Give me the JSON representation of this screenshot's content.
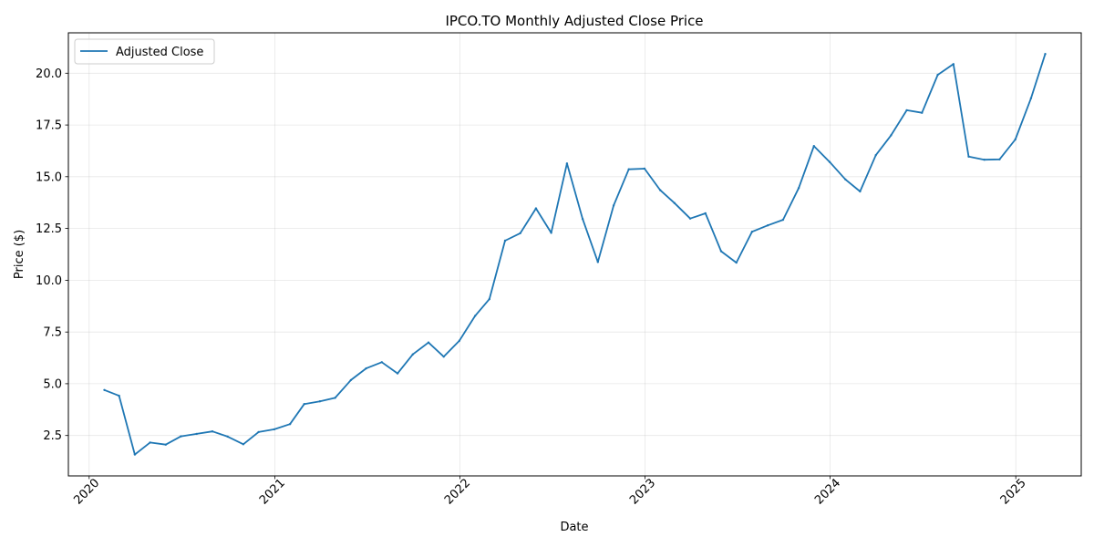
{
  "chart_data": {
    "type": "line",
    "title": "IPCO.TO Monthly Adjusted Close Price",
    "xlabel": "Date",
    "ylabel": "Price ($)",
    "xlim": [
      "2019-11-21",
      "2025-05-10"
    ],
    "ylim": [
      0.55,
      21.95
    ],
    "x_ticks": [
      {
        "date": "2020-01-01",
        "label": "2020"
      },
      {
        "date": "2021-01-01",
        "label": "2021"
      },
      {
        "date": "2022-01-01",
        "label": "2022"
      },
      {
        "date": "2023-01-01",
        "label": "2023"
      },
      {
        "date": "2024-01-01",
        "label": "2024"
      },
      {
        "date": "2025-01-01",
        "label": "2025"
      }
    ],
    "y_ticks": [
      2.5,
      5.0,
      7.5,
      10.0,
      12.5,
      15.0,
      17.5,
      20.0
    ],
    "y_tick_labels": [
      "2.5",
      "5.0",
      "7.5",
      "10.0",
      "12.5",
      "15.0",
      "17.5",
      "20.0"
    ],
    "grid": true,
    "legend_position": "upper-left",
    "series": [
      {
        "name": "Adjusted Close",
        "color": "#1f77b4",
        "x": [
          "2020-01-31",
          "2020-02-29",
          "2020-03-31",
          "2020-04-30",
          "2020-05-31",
          "2020-06-30",
          "2020-07-31",
          "2020-08-31",
          "2020-09-30",
          "2020-10-31",
          "2020-11-30",
          "2020-12-31",
          "2021-01-31",
          "2021-02-28",
          "2021-03-31",
          "2021-04-30",
          "2021-05-31",
          "2021-06-30",
          "2021-07-31",
          "2021-08-31",
          "2021-09-30",
          "2021-10-31",
          "2021-11-30",
          "2021-12-31",
          "2022-01-31",
          "2022-02-28",
          "2022-03-31",
          "2022-04-30",
          "2022-05-31",
          "2022-06-30",
          "2022-07-31",
          "2022-08-31",
          "2022-09-30",
          "2022-10-31",
          "2022-11-30",
          "2022-12-31",
          "2023-01-31",
          "2023-02-28",
          "2023-03-31",
          "2023-04-30",
          "2023-05-31",
          "2023-06-30",
          "2023-07-31",
          "2023-08-31",
          "2023-09-30",
          "2023-10-31",
          "2023-11-30",
          "2023-12-31",
          "2024-01-31",
          "2024-02-29",
          "2024-03-31",
          "2024-04-30",
          "2024-05-31",
          "2024-06-30",
          "2024-07-31",
          "2024-08-31",
          "2024-09-30",
          "2024-10-31",
          "2024-11-30",
          "2024-12-31",
          "2025-01-31",
          "2025-02-28"
        ],
        "values": [
          4.7,
          4.42,
          1.58,
          2.16,
          2.06,
          2.46,
          2.58,
          2.7,
          2.45,
          2.08,
          2.67,
          2.8,
          3.05,
          4.02,
          4.15,
          4.32,
          5.18,
          5.74,
          6.04,
          5.5,
          6.42,
          6.99,
          6.31,
          7.08,
          8.28,
          9.09,
          11.91,
          12.27,
          13.47,
          12.29,
          15.64,
          12.96,
          10.88,
          13.61,
          15.36,
          15.39,
          14.35,
          13.73,
          12.98,
          13.23,
          11.4,
          10.85,
          12.34,
          12.65,
          12.92,
          14.45,
          16.48,
          15.71,
          14.87,
          14.29,
          16.04,
          17.0,
          18.21,
          18.09,
          19.92,
          20.44,
          15.97,
          15.82,
          15.84,
          16.8,
          18.79,
          20.93
        ]
      }
    ]
  }
}
